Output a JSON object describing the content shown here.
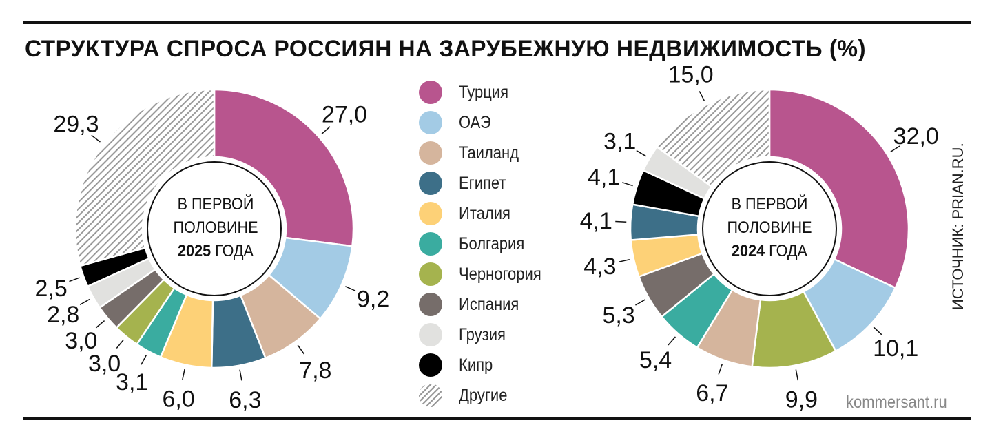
{
  "title": "СТРУКТУРА СПРОСА РОССИЯН НА ЗАРУБЕЖНУЮ НЕДВИЖИМОСТЬ (%)",
  "source": "ИСТОЧНИК: PRIAN.RU.",
  "credit": "kommersant.ru",
  "legend": [
    {
      "label": "Турция",
      "color": "#b8558e"
    },
    {
      "label": "ОАЭ",
      "color": "#a3cbe5"
    },
    {
      "label": "Таиланд",
      "color": "#d5b59d"
    },
    {
      "label": "Египет",
      "color": "#3d6f88"
    },
    {
      "label": "Италия",
      "color": "#fdd177"
    },
    {
      "label": "Болгария",
      "color": "#3aaca0"
    },
    {
      "label": "Черногория",
      "color": "#a5b34e"
    },
    {
      "label": "Испания",
      "color": "#766d6a"
    },
    {
      "label": "Грузия",
      "color": "#e1e1df"
    },
    {
      "label": "Кипр",
      "color": "#000000"
    },
    {
      "label": "Другие",
      "color": "hatch"
    }
  ],
  "chart_data": [
    {
      "type": "pie",
      "center_line1": "В ПЕРВОЙ",
      "center_line2": "ПОЛОВИНЕ",
      "center_year": "2025",
      "center_suffix": "ГОДА",
      "categories": [
        "Турция",
        "ОАЭ",
        "Таиланд",
        "Египет",
        "Италия",
        "Болгария",
        "Черногория",
        "Испания",
        "Грузия",
        "Кипр",
        "Другие"
      ],
      "values": [
        27.0,
        9.2,
        7.8,
        6.3,
        6.0,
        3.1,
        3.0,
        3.0,
        2.8,
        2.5,
        29.3
      ],
      "labels": [
        "27,0",
        "9,2",
        "7,8",
        "6,3",
        "6,0",
        "3,1",
        "3,0",
        "3,0",
        "2,8",
        "2,5",
        "29,3"
      ]
    },
    {
      "type": "pie",
      "center_line1": "В ПЕРВОЙ",
      "center_line2": "ПОЛОВИНЕ",
      "center_year": "2024",
      "center_suffix": "ГОДА",
      "categories": [
        "Турция",
        "ОАЭ",
        "Черногория",
        "Таиланд",
        "Болгария",
        "Испания",
        "Италия",
        "Египет",
        "Кипр",
        "Грузия",
        "Другие"
      ],
      "values": [
        32.0,
        10.1,
        9.9,
        6.7,
        5.4,
        5.3,
        4.3,
        4.1,
        4.1,
        3.1,
        15.0
      ],
      "labels": [
        "32,0",
        "10,1",
        "9,9",
        "6,7",
        "5,4",
        "5,3",
        "4,3",
        "4,1",
        "4,1",
        "3,1",
        "15,0"
      ]
    }
  ]
}
